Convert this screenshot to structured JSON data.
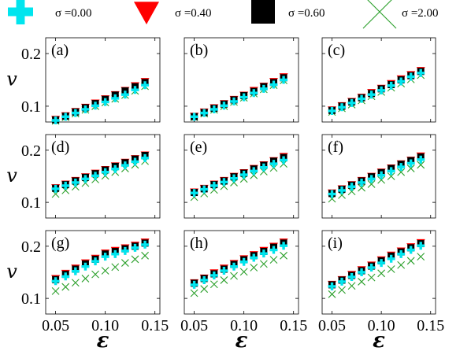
{
  "legend": [
    {
      "label": "σ =0.00",
      "marker": "plus",
      "color": "#00e5ee"
    },
    {
      "label": "σ =0.40",
      "marker": "triangle-down",
      "color": "#ff0000"
    },
    {
      "label": "σ =0.60",
      "marker": "square",
      "color": "#000000"
    },
    {
      "label": "σ =2.00",
      "marker": "x",
      "color": "#2ca02c"
    }
  ],
  "chart_data": {
    "type": "scatter",
    "layout": "3x3 grid",
    "xlabel": "ε",
    "ylabel": "v",
    "xlim": [
      0.04,
      0.155
    ],
    "ylim": [
      0.07,
      0.23
    ],
    "xticks": [
      0.05,
      0.1,
      0.15
    ],
    "xtick_labels": [
      "0.05",
      "0.10",
      "0.15"
    ],
    "yticks": [
      0.1,
      0.2
    ],
    "ytick_labels": [
      "0.1",
      "0.2"
    ],
    "x": [
      0.05,
      0.06,
      0.07,
      0.08,
      0.09,
      0.1,
      0.11,
      0.12,
      0.13,
      0.14
    ],
    "panels": [
      {
        "label": "(a)",
        "series": [
          {
            "name": "σ =0.00",
            "values": [
              0.073,
              0.08,
              0.087,
              0.094,
              0.101,
              0.108,
              0.115,
              0.122,
              0.131,
              0.14
            ]
          },
          {
            "name": "σ =0.40",
            "values": [
              0.075,
              0.082,
              0.09,
              0.098,
              0.106,
              0.114,
              0.122,
              0.13,
              0.139,
              0.147
            ]
          },
          {
            "name": "σ =0.60",
            "values": [
              0.074,
              0.081,
              0.089,
              0.097,
              0.105,
              0.113,
              0.121,
              0.129,
              0.137,
              0.145
            ]
          },
          {
            "name": "σ =2.00",
            "values": [
              0.072,
              0.079,
              0.086,
              0.093,
              0.1,
              0.107,
              0.114,
              0.121,
              0.129,
              0.138
            ]
          }
        ]
      },
      {
        "label": "(b)",
        "series": [
          {
            "name": "σ =0.00",
            "values": [
              0.08,
              0.087,
              0.094,
              0.101,
              0.109,
              0.117,
              0.125,
              0.133,
              0.141,
              0.15
            ]
          },
          {
            "name": "σ =0.40",
            "values": [
              0.081,
              0.089,
              0.097,
              0.105,
              0.113,
              0.121,
              0.13,
              0.138,
              0.147,
              0.156
            ]
          },
          {
            "name": "σ =0.60",
            "values": [
              0.08,
              0.088,
              0.096,
              0.104,
              0.112,
              0.12,
              0.128,
              0.137,
              0.145,
              0.154
            ]
          },
          {
            "name": "σ =2.00",
            "values": [
              0.079,
              0.086,
              0.093,
              0.1,
              0.108,
              0.116,
              0.124,
              0.132,
              0.14,
              0.149
            ]
          }
        ]
      },
      {
        "label": "(c)",
        "series": [
          {
            "name": "σ =0.00",
            "values": [
              0.091,
              0.098,
              0.106,
              0.114,
              0.122,
              0.13,
              0.139,
              0.147,
              0.156,
              0.163
            ]
          },
          {
            "name": "σ =0.40",
            "values": [
              0.093,
              0.101,
              0.109,
              0.117,
              0.126,
              0.134,
              0.143,
              0.152,
              0.16,
              0.168
            ]
          },
          {
            "name": "σ =0.60",
            "values": [
              0.092,
              0.1,
              0.108,
              0.116,
              0.124,
              0.133,
              0.141,
              0.15,
              0.158,
              0.166
            ]
          },
          {
            "name": "σ =2.00",
            "values": [
              0.089,
              0.096,
              0.103,
              0.111,
              0.119,
              0.127,
              0.135,
              0.143,
              0.151,
              0.159
            ]
          }
        ]
      },
      {
        "label": "(d)",
        "series": [
          {
            "name": "σ =0.00",
            "values": [
              0.126,
              0.132,
              0.138,
              0.145,
              0.151,
              0.158,
              0.164,
              0.171,
              0.178,
              0.185
            ]
          },
          {
            "name": "σ =0.40",
            "values": [
              0.128,
              0.135,
              0.142,
              0.149,
              0.156,
              0.163,
              0.17,
              0.177,
              0.184,
              0.191
            ]
          },
          {
            "name": "σ =0.60",
            "values": [
              0.127,
              0.134,
              0.141,
              0.148,
              0.155,
              0.162,
              0.169,
              0.176,
              0.183,
              0.19
            ]
          },
          {
            "name": "σ =2.00",
            "values": [
              0.116,
              0.123,
              0.13,
              0.137,
              0.144,
              0.151,
              0.158,
              0.165,
              0.172,
              0.179
            ]
          }
        ]
      },
      {
        "label": "(e)",
        "series": [
          {
            "name": "σ =0.00",
            "values": [
              0.118,
              0.125,
              0.132,
              0.139,
              0.146,
              0.153,
              0.16,
              0.167,
              0.174,
              0.181
            ]
          },
          {
            "name": "σ =0.40",
            "values": [
              0.12,
              0.127,
              0.135,
              0.142,
              0.15,
              0.157,
              0.165,
              0.172,
              0.18,
              0.188
            ]
          },
          {
            "name": "σ =0.60",
            "values": [
              0.119,
              0.126,
              0.134,
              0.141,
              0.149,
              0.156,
              0.164,
              0.171,
              0.179,
              0.186
            ]
          },
          {
            "name": "σ =2.00",
            "values": [
              0.11,
              0.117,
              0.124,
              0.131,
              0.138,
              0.145,
              0.152,
              0.159,
              0.166,
              0.174
            ]
          }
        ]
      },
      {
        "label": "(f)",
        "series": [
          {
            "name": "σ =0.00",
            "values": [
              0.116,
              0.123,
              0.13,
              0.138,
              0.145,
              0.152,
              0.16,
              0.168,
              0.175,
              0.182
            ]
          },
          {
            "name": "σ =0.40",
            "values": [
              0.118,
              0.126,
              0.134,
              0.142,
              0.15,
              0.158,
              0.166,
              0.174,
              0.181,
              0.189
            ]
          },
          {
            "name": "σ =0.60",
            "values": [
              0.117,
              0.125,
              0.133,
              0.141,
              0.149,
              0.157,
              0.165,
              0.173,
              0.18,
              0.187
            ]
          },
          {
            "name": "σ =2.00",
            "values": [
              0.107,
              0.114,
              0.121,
              0.128,
              0.135,
              0.143,
              0.15,
              0.158,
              0.165,
              0.172
            ]
          }
        ]
      },
      {
        "label": "(g)",
        "series": [
          {
            "name": "σ =0.00",
            "values": [
              0.133,
              0.142,
              0.152,
              0.161,
              0.171,
              0.18,
              0.185,
              0.191,
              0.197,
              0.203
            ]
          },
          {
            "name": "σ =0.40",
            "values": [
              0.138,
              0.148,
              0.158,
              0.168,
              0.177,
              0.187,
              0.192,
              0.197,
              0.202,
              0.208
            ]
          },
          {
            "name": "σ =0.60",
            "values": [
              0.136,
              0.146,
              0.156,
              0.166,
              0.175,
              0.185,
              0.19,
              0.195,
              0.2,
              0.206
            ]
          },
          {
            "name": "σ =2.00",
            "values": [
              0.114,
              0.122,
              0.13,
              0.138,
              0.146,
              0.153,
              0.16,
              0.168,
              0.175,
              0.182
            ]
          }
        ]
      },
      {
        "label": "(h)",
        "series": [
          {
            "name": "σ =0.00",
            "values": [
              0.126,
              0.135,
              0.144,
              0.153,
              0.161,
              0.17,
              0.178,
              0.186,
              0.193,
              0.201
            ]
          },
          {
            "name": "σ =0.40",
            "values": [
              0.13,
              0.139,
              0.149,
              0.158,
              0.167,
              0.176,
              0.184,
              0.192,
              0.2,
              0.208
            ]
          },
          {
            "name": "σ =0.60",
            "values": [
              0.129,
              0.138,
              0.147,
              0.156,
              0.165,
              0.174,
              0.182,
              0.19,
              0.198,
              0.206
            ]
          },
          {
            "name": "σ =2.00",
            "values": [
              0.11,
              0.118,
              0.127,
              0.135,
              0.143,
              0.151,
              0.159,
              0.166,
              0.174,
              0.182
            ]
          }
        ]
      },
      {
        "label": "(i)",
        "series": [
          {
            "name": "σ =0.00",
            "values": [
              0.123,
              0.132,
              0.141,
              0.15,
              0.159,
              0.168,
              0.176,
              0.185,
              0.193,
              0.201
            ]
          },
          {
            "name": "σ =0.40",
            "values": [
              0.127,
              0.136,
              0.146,
              0.155,
              0.164,
              0.174,
              0.183,
              0.191,
              0.199,
              0.207
            ]
          },
          {
            "name": "σ =0.60",
            "values": [
              0.126,
              0.135,
              0.144,
              0.153,
              0.162,
              0.172,
              0.181,
              0.189,
              0.197,
              0.205
            ]
          },
          {
            "name": "σ =2.00",
            "values": [
              0.108,
              0.116,
              0.124,
              0.132,
              0.14,
              0.148,
              0.156,
              0.164,
              0.172,
              0.18
            ]
          }
        ]
      }
    ]
  }
}
